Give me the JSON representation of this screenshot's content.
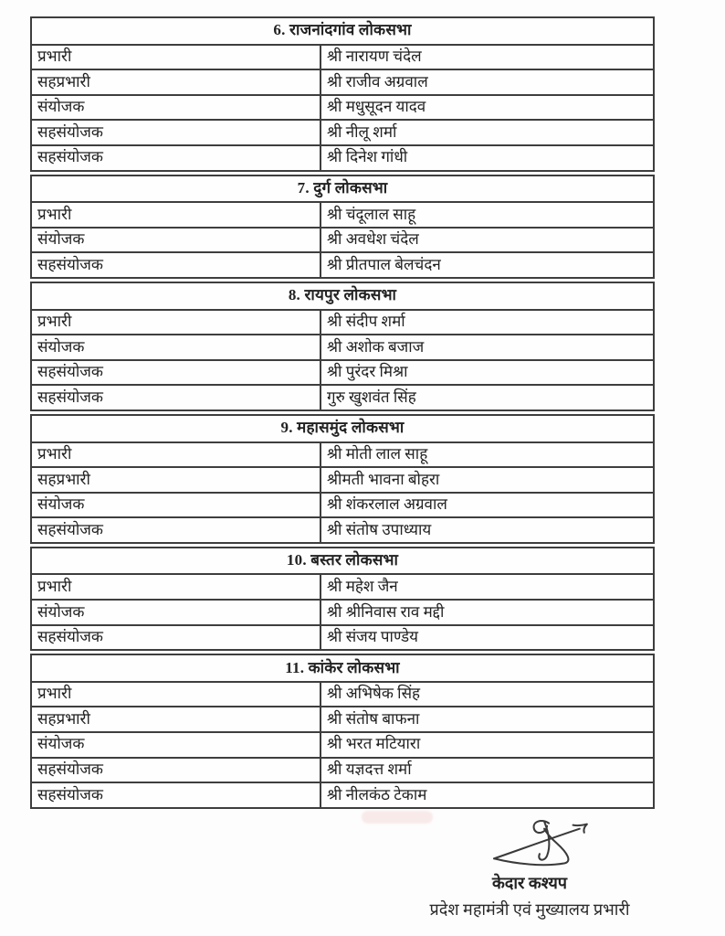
{
  "document": {
    "sections": [
      {
        "title": "6. राजनांदगांव लोकसभा",
        "rows": [
          {
            "role": "प्रभारी",
            "name": "श्री नारायण चंदेल"
          },
          {
            "role": "सहप्रभारी",
            "name": "श्री राजीव अग्रवाल"
          },
          {
            "role": "संयोजक",
            "name": "श्री मधुसूदन यादव"
          },
          {
            "role": "सहसंयोजक",
            "name": "श्री नीलू शर्मा"
          },
          {
            "role": "सहसंयोजक",
            "name": "श्री दिनेश गांधी"
          }
        ]
      },
      {
        "title": "7. दुर्ग लोकसभा",
        "rows": [
          {
            "role": "प्रभारी",
            "name": "श्री चंदूलाल साहू"
          },
          {
            "role": "संयोजक",
            "name": "श्री अवधेश चंदेल"
          },
          {
            "role": "सहसंयोजक",
            "name": "श्री प्रीतपाल बेलचंदन"
          }
        ]
      },
      {
        "title": "8. रायपुर लोकसभा",
        "rows": [
          {
            "role": "प्रभारी",
            "name": "श्री संदीप शर्मा"
          },
          {
            "role": "संयोजक",
            "name": "श्री अशोक बजाज"
          },
          {
            "role": "सहसंयोजक",
            "name": "श्री पुरंदर मिश्रा"
          },
          {
            "role": "सहसंयोजक",
            "name": "गुरु खुशवंत सिंह"
          }
        ]
      },
      {
        "title": "9. महासमुंद लोकसभा",
        "rows": [
          {
            "role": "प्रभारी",
            "name": "श्री मोती लाल साहू"
          },
          {
            "role": "सहप्रभारी",
            "name": "श्रीमती भावना बोहरा"
          },
          {
            "role": "संयोजक",
            "name": "श्री शंकरलाल अग्रवाल"
          },
          {
            "role": "सहसंयोजक",
            "name": "श्री संतोष उपाध्याय"
          }
        ]
      },
      {
        "title": "10. बस्तर लोकसभा",
        "rows": [
          {
            "role": "प्रभारी",
            "name": "श्री महेश जैन"
          },
          {
            "role": "संयोजक",
            "name": "श्री श्रीनिवास राव मद्दी"
          },
          {
            "role": "सहसंयोजक",
            "name": "श्री संजय पाण्डेय"
          }
        ]
      },
      {
        "title": "11. कांकेर लोकसभा",
        "rows": [
          {
            "role": "प्रभारी",
            "name": "श्री अभिषेक सिंह"
          },
          {
            "role": "सहप्रभारी",
            "name": "श्री संतोष बाफना"
          },
          {
            "role": "संयोजक",
            "name": "श्री भरत मटियारा"
          },
          {
            "role": "सहसंयोजक",
            "name": "श्री यज्ञदत्त शर्मा"
          },
          {
            "role": "सहसंयोजक",
            "name": "श्री नीलकंठ टेकाम"
          }
        ]
      }
    ],
    "signatory": {
      "name": "केदार कश्यप",
      "title": "प्रदेश महामंत्री एवं मुख्यालय प्रभारी"
    }
  },
  "colors": {
    "text": "#222222",
    "border": "#3e3e3e",
    "page": "#fdfdfd",
    "signature_ink": "#3a3a3a"
  }
}
